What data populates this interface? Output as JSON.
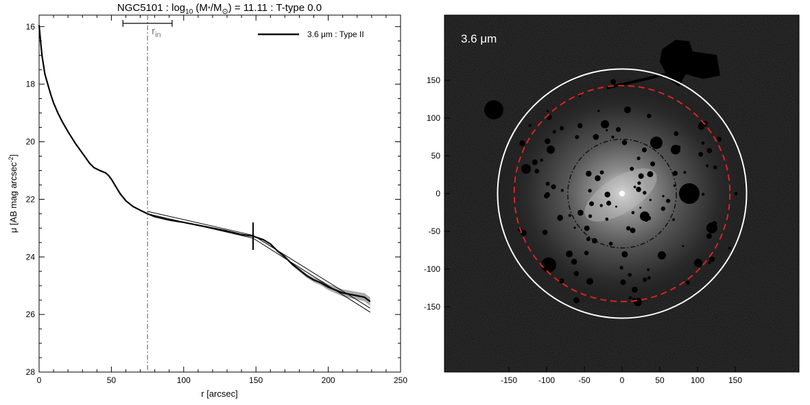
{
  "colors": {
    "profile": "#000000",
    "fit": "#000000",
    "error_band": "#a9a9a9",
    "rin_line": "#555555",
    "rin_label": "#777777",
    "outer_circle": "#ffffff",
    "mid_circle": "#dd2222",
    "inner_circle": "#111111",
    "image_label": "#ffffff"
  },
  "chart_data": [
    {
      "type": "line",
      "title_prefix": "NGC5101 : log",
      "title_sub": "10",
      "title_mid": " (M",
      "title_star": "*",
      "title_slash": "/M",
      "title_sun": "⊙",
      "title_suffix": ") = 11.11 : T-type 0.0",
      "xlabel": "r [arcsec]",
      "ylabel_main": "μ [AB mag arcsec",
      "ylabel_sup": "-2",
      "ylabel_close": "]",
      "xlim": [
        0,
        250
      ],
      "ylim": [
        28,
        15.6
      ],
      "y_inverted": true,
      "xticks": [
        0,
        50,
        100,
        150,
        200,
        250
      ],
      "yticks": [
        16,
        18,
        20,
        22,
        24,
        26,
        28
      ],
      "legend": {
        "label": "3.6 μm : Type II",
        "placement": "top-right"
      },
      "rin": {
        "value": 75,
        "label": "r",
        "label_sub": "in",
        "bar_range": [
          58,
          92
        ]
      },
      "break_radius": 148,
      "series": [
        {
          "name": "3.6 μm : Type II",
          "x": [
            0,
            1,
            2,
            4,
            6,
            8,
            10,
            13,
            16,
            20,
            25,
            30,
            35,
            38,
            42,
            46,
            48,
            50,
            53,
            56,
            60,
            65,
            70,
            75,
            80,
            90,
            100,
            110,
            120,
            130,
            140,
            148,
            155,
            160,
            165,
            170,
            175,
            180,
            185,
            190,
            195,
            200,
            205,
            210,
            215,
            220,
            225,
            229
          ],
          "y": [
            15.95,
            16.5,
            17.0,
            17.65,
            18.0,
            18.35,
            18.65,
            19.0,
            19.3,
            19.65,
            20.05,
            20.4,
            20.75,
            20.9,
            21.0,
            21.08,
            21.17,
            21.3,
            21.55,
            21.8,
            22.05,
            22.25,
            22.38,
            22.5,
            22.6,
            22.72,
            22.8,
            22.9,
            23.0,
            23.1,
            23.22,
            23.28,
            23.4,
            23.55,
            23.8,
            24.0,
            24.25,
            24.45,
            24.65,
            24.8,
            24.9,
            25.05,
            25.15,
            25.25,
            25.3,
            25.35,
            25.4,
            25.55
          ],
          "err": [
            0,
            0,
            0,
            0,
            0,
            0,
            0,
            0,
            0,
            0,
            0,
            0,
            0,
            0,
            0,
            0,
            0,
            0,
            0,
            0,
            0,
            0,
            0,
            0,
            0,
            0,
            0,
            0,
            0,
            0,
            0,
            0.02,
            0.02,
            0.03,
            0.03,
            0.04,
            0.05,
            0.06,
            0.07,
            0.08,
            0.09,
            0.1,
            0.11,
            0.12,
            0.13,
            0.13,
            0.14,
            0.15
          ]
        }
      ],
      "fits": [
        {
          "x": [
            75,
            148
          ],
          "y": [
            22.42,
            23.25
          ]
        },
        {
          "x": [
            75,
            148
          ],
          "y": [
            22.5,
            23.35
          ]
        },
        {
          "x": [
            148,
            229
          ],
          "y": [
            23.25,
            25.78
          ]
        },
        {
          "x": [
            148,
            229
          ],
          "y": [
            23.35,
            25.92
          ]
        }
      ]
    },
    {
      "type": "image",
      "label": "3.6 μm",
      "xlim": [
        -180,
        180
      ],
      "ylim": [
        -180,
        180
      ],
      "xticks": [
        -150,
        -100,
        -50,
        0,
        50,
        100,
        150
      ],
      "yticks": [
        150,
        100,
        50,
        0,
        -50,
        -100,
        -150
      ],
      "circle_radii": [
        165,
        143,
        72
      ]
    }
  ]
}
